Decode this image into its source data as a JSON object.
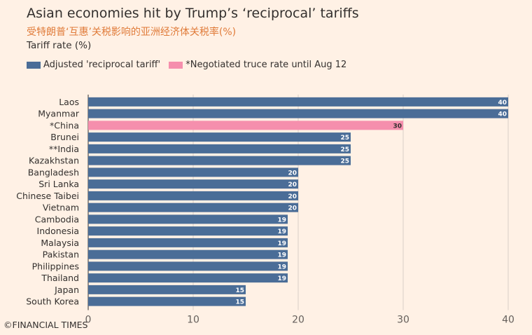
{
  "header": {
    "title": "Asian economies hit by Trump’s ‘reciprocal’ tariffs",
    "subtitle": "受特朗普‘互惠’关税影响的亚洲经济体关税率(%)",
    "unit": "Tariff rate (%)"
  },
  "legend": [
    {
      "label": "Adjusted 'reciprocal tariff'",
      "color": "#4a6d97"
    },
    {
      "label": "*Negotiated truce rate until Aug 12",
      "color": "#f58fad"
    }
  ],
  "footer": {
    "source": "©FINANCIAL TIMES"
  },
  "chart_data": {
    "type": "bar",
    "orientation": "horizontal",
    "categories": [
      "Laos",
      "Myanmar",
      "*China",
      "Brunei",
      "**India",
      "Kazakhstan",
      "Bangladesh",
      "Sri Lanka",
      "Chinese Taibei",
      "Vietnam",
      "Cambodia",
      "Indonesia",
      "Malaysia",
      "Pakistan",
      "Philippines",
      "Thailand",
      "Japan",
      "South Korea"
    ],
    "values": [
      40,
      40,
      30,
      25,
      25,
      25,
      20,
      20,
      20,
      20,
      19,
      19,
      19,
      19,
      19,
      19,
      15,
      15
    ],
    "series_index": [
      0,
      0,
      1,
      0,
      0,
      0,
      0,
      0,
      0,
      0,
      0,
      0,
      0,
      0,
      0,
      0,
      0,
      0
    ],
    "xlim": [
      0,
      40
    ],
    "xticks": [
      0,
      10,
      20,
      30,
      40
    ],
    "grid": true,
    "legend_position": "top-left"
  }
}
